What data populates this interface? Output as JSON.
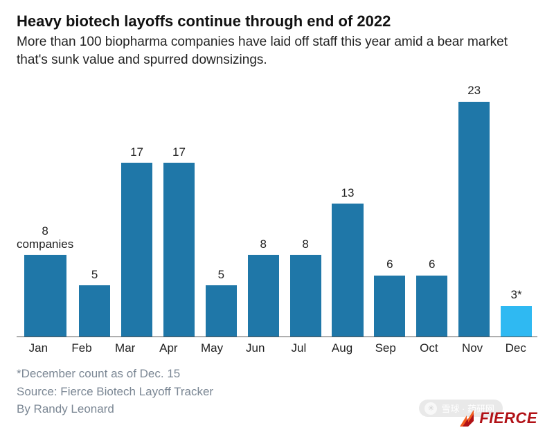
{
  "title": "Heavy biotech layoffs continue through end of 2022",
  "subtitle": "More than 100 biopharma companies have laid off staff this year amid a bear market that's sunk value and spurred downsizings.",
  "chart": {
    "type": "bar",
    "categories": [
      "Jan",
      "Feb",
      "Mar",
      "Apr",
      "May",
      "Jun",
      "Jul",
      "Aug",
      "Sep",
      "Oct",
      "Nov",
      "Dec"
    ],
    "values": [
      8,
      5,
      17,
      17,
      5,
      8,
      8,
      13,
      6,
      6,
      23,
      3
    ],
    "value_labels": [
      "8\ncompanies",
      "5",
      "17",
      "17",
      "5",
      "8",
      "8",
      "13",
      "6",
      "6",
      "23",
      "3*"
    ],
    "bar_colors": [
      "#1f77a8",
      "#1f77a8",
      "#1f77a8",
      "#1f77a8",
      "#1f77a8",
      "#1f77a8",
      "#1f77a8",
      "#1f77a8",
      "#1f77a8",
      "#1f77a8",
      "#1f77a8",
      "#2fb9f2"
    ],
    "y_max": 23,
    "background_color": "#ffffff",
    "axis_color": "#555555",
    "label_fontsize": 17,
    "title_fontsize": 22,
    "subtitle_fontsize": 19,
    "bar_width_pct": 74
  },
  "footer": {
    "note": "*December count as of Dec. 15",
    "source": "Source: Fierce Biotech Layoff Tracker",
    "byline": "By Randy Leonard",
    "text_color": "#7b8794",
    "fontsize": 17
  },
  "logo": {
    "text": "FIERCE",
    "color": "#b11116",
    "accent_color": "#f25c1f"
  },
  "watermark": {
    "text": "雪球 · 药研网"
  }
}
